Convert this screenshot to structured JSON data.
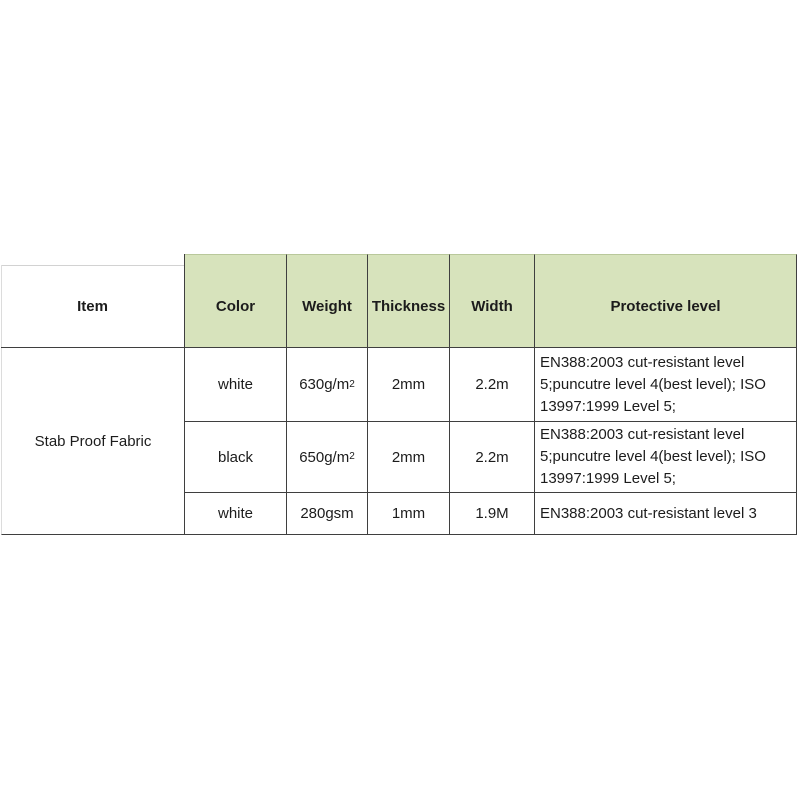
{
  "page": {
    "background": "#ffffff"
  },
  "table": {
    "headers": [
      "Item",
      "Color",
      "Weight",
      "Thickness",
      "Width",
      "Protective level"
    ],
    "item_name": "Stab Proof Fabric",
    "rows": [
      {
        "color": "white",
        "weight": "630g/m",
        "weight_sup": "2",
        "thickness": "2mm",
        "width": "2.2m",
        "protective_level": "EN388:2003 cut-resistant level 5;puncutre level 4(best level); ISO 13997:1999 Level 5;"
      },
      {
        "color": "black",
        "weight": "650g/m",
        "weight_sup": "2",
        "thickness": "2mm",
        "width": "2.2m",
        "protective_level": "EN388:2003 cut-resistant level 5;puncutre level 4(best level); ISO 13997:1999 Level 5;"
      },
      {
        "color": "white",
        "weight": "280gsm",
        "weight_sup": "",
        "thickness": "1mm",
        "width": "1.9M",
        "protective_level": "EN388:2003 cut-resistant level 3"
      }
    ],
    "colors": {
      "header_bg": "#d7e3bc",
      "border_dark": "#3f3f3f",
      "border_light": "#d2d2d2",
      "text": "#1c1c1c"
    }
  }
}
